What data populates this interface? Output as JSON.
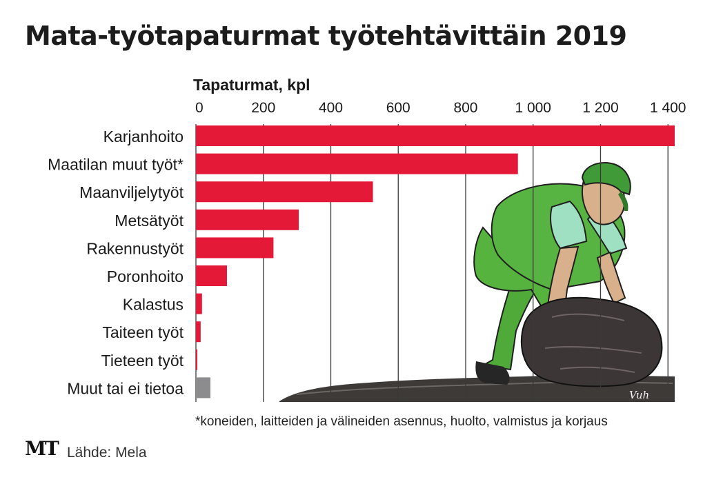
{
  "title": "Mata-työtapaturmat työtehtävittäin 2019",
  "footnote": "*koneiden, laitteiden ja välineiden asennus, huolto, valmistus ja korjaus",
  "logo": "MT",
  "source": "Lähde: Mela",
  "signature": "Vuh",
  "colors": {
    "bar": "#e41837",
    "other": "#8c8c8e",
    "grid": "#3a3a3a",
    "text": "#1a1a1a"
  },
  "illustration": "farmer-lifting-rock-icon",
  "chart_data": {
    "type": "bar",
    "orientation": "horizontal",
    "xlabel": "Tapaturmat, kpl",
    "xlim": [
      0,
      1420
    ],
    "ticks": [
      0,
      200,
      400,
      600,
      800,
      1000,
      1200,
      1400
    ],
    "tick_labels": [
      "0",
      "200",
      "400",
      "600",
      "800",
      "1 000",
      "1 200",
      "1 400"
    ],
    "grid": true,
    "categories": [
      "Karjanhoito",
      "Maatilan muut työt*",
      "Maanviljelytyöt",
      "Metsätyöt",
      "Rakennustyöt",
      "Poronhoito",
      "Kalastus",
      "Taiteen työt",
      "Tieteen työt",
      "Muut tai ei tietoa"
    ],
    "values": [
      1420,
      955,
      525,
      305,
      230,
      92,
      18,
      14,
      4,
      43
    ],
    "bar_colors": [
      "#e41837",
      "#e41837",
      "#e41837",
      "#e41837",
      "#e41837",
      "#e41837",
      "#e41837",
      "#e41837",
      "#e41837",
      "#8c8c8e"
    ]
  }
}
